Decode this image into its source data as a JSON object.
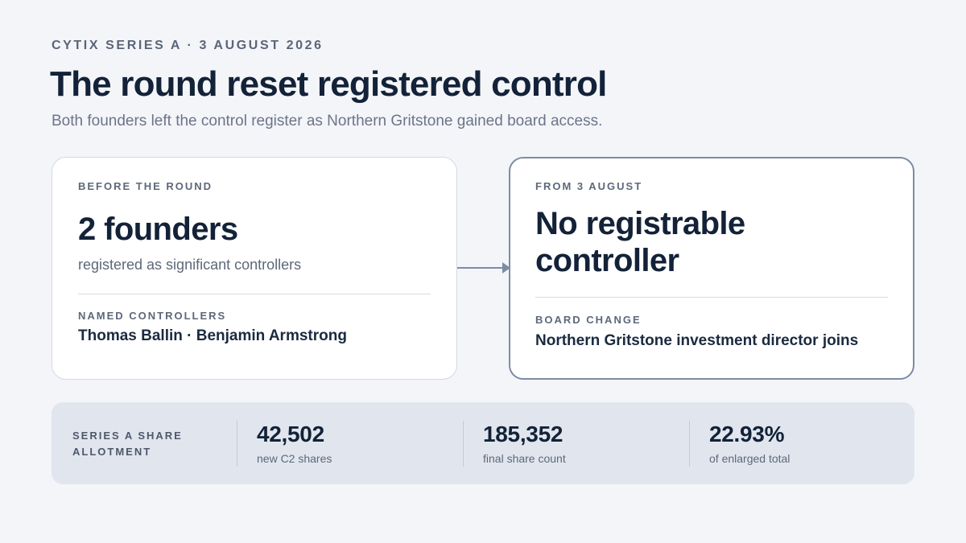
{
  "header": {
    "eyebrow": "CYTIX SERIES A · 3 AUGUST 2026",
    "title": "The round reset registered control",
    "subtitle": "Both founders left the control register as Northern Gritstone gained board access."
  },
  "before_card": {
    "label": "BEFORE THE ROUND",
    "value": "2 founders",
    "caption": "registered as significant controllers",
    "detail_label": "NAMED CONTROLLERS",
    "detail": "Thomas Ballin · Benjamin Armstrong"
  },
  "after_card": {
    "label": "FROM 3 AUGUST",
    "value": "No registrable controller",
    "detail_label": "BOARD CHANGE",
    "detail": "Northern Gritstone investment director joins"
  },
  "stats": {
    "label": "SERIES A SHARE ALLOTMENT",
    "items": [
      {
        "value": "42,502",
        "caption": "new C2 shares"
      },
      {
        "value": "185,352",
        "caption": "final share count"
      },
      {
        "value": "22.93%",
        "caption": "of enlarged total"
      }
    ]
  },
  "colors": {
    "background": "#f4f5f9",
    "ink": "#132238",
    "muted": "#5d6879",
    "accent_border": "#7d8ca3",
    "stats_band": "#e1e6ee"
  }
}
